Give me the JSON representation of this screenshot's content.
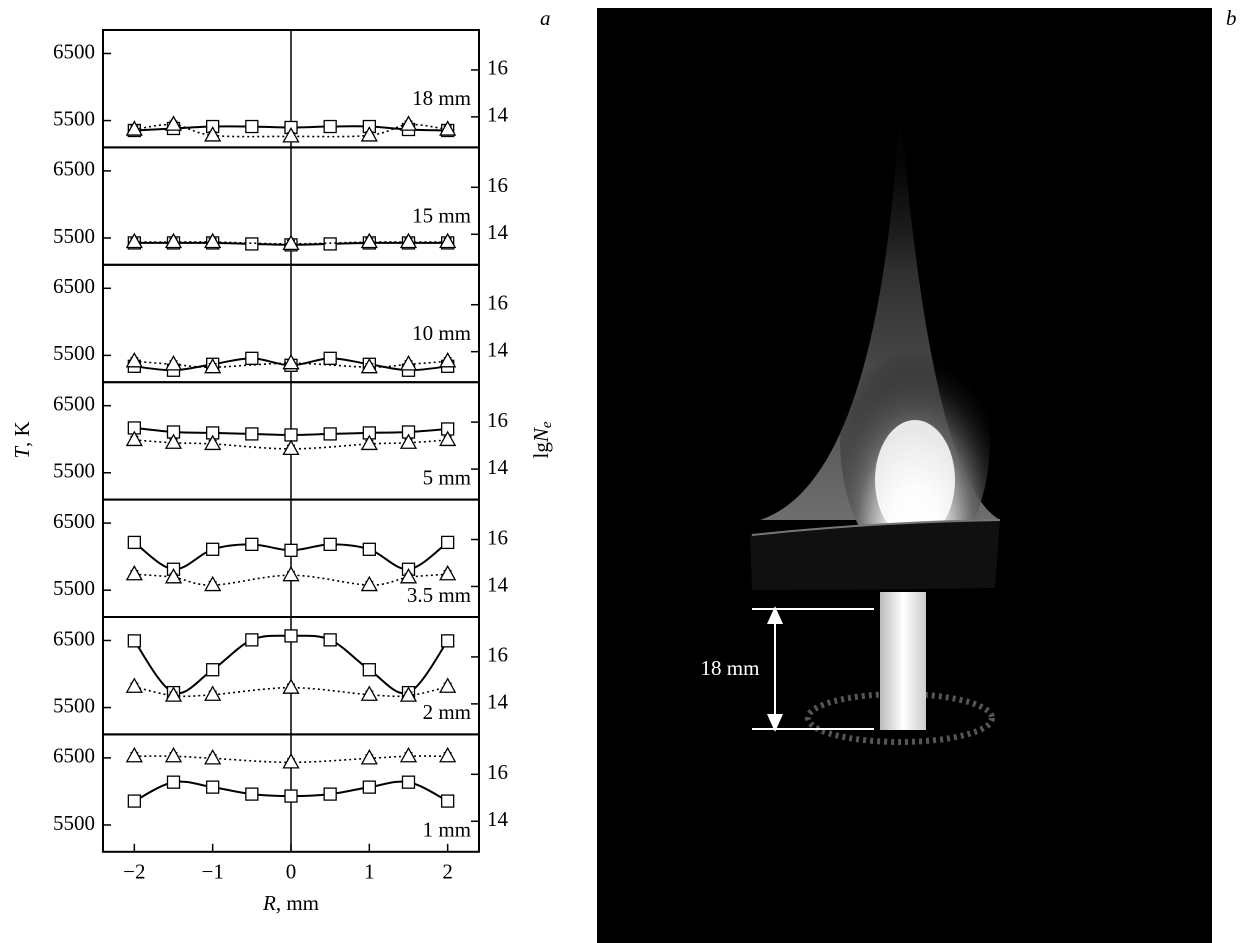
{
  "figure": {
    "label_a": "a",
    "label_b": "b",
    "y_label": {
      "var": "T",
      "unit": ", K"
    },
    "y2_label": {
      "prefix": "lg",
      "var": "N",
      "sub": "e"
    },
    "x_label": {
      "var": "R",
      "unit": ", mm"
    },
    "photo_annotation": "18 mm"
  },
  "chart_data": [
    {
      "type": "line",
      "label": "18 mm",
      "xlim": [
        -2.4,
        2.4
      ],
      "ylim": [
        5100,
        6850
      ],
      "y2lim": [
        12.7,
        17.7
      ],
      "yticks": [
        5500,
        6500
      ],
      "y2ticks": [
        14,
        16
      ],
      "series": [
        {
          "marker": "square",
          "style": "solid",
          "color": "#000000",
          "error": 80,
          "x": [
            -2,
            -1.5,
            -1,
            -0.5,
            0,
            0.5,
            1,
            1.5,
            2
          ],
          "values": [
            5352,
            5382,
            5411,
            5411,
            5397,
            5411,
            5411,
            5367,
            5352
          ]
        },
        {
          "marker": "triangle",
          "style": "dotted",
          "color": "#000000",
          "axis": "y2",
          "error": 0.15,
          "x": [
            -2,
            -1.5,
            -1,
            0,
            1,
            1.5,
            2
          ],
          "values": [
            13.46,
            13.67,
            13.21,
            13.17,
            13.21,
            13.67,
            13.46
          ]
        }
      ]
    },
    {
      "type": "line",
      "label": "15 mm",
      "xlim": [
        -2.4,
        2.4
      ],
      "ylim": [
        5100,
        6850
      ],
      "y2lim": [
        12.7,
        17.7
      ],
      "yticks": [
        5500,
        6500
      ],
      "y2ticks": [
        14,
        16
      ],
      "series": [
        {
          "marker": "square",
          "style": "solid",
          "color": "#000000",
          "error": 80,
          "x": [
            -2,
            -1.5,
            -1,
            -0.5,
            0,
            0.5,
            1,
            1.5,
            2
          ],
          "values": [
            5426,
            5426,
            5426,
            5411,
            5397,
            5411,
            5426,
            5426,
            5426
          ]
        },
        {
          "marker": "triangle",
          "style": "dotted",
          "color": "#000000",
          "axis": "y2",
          "error": 0.15,
          "x": [
            -2,
            -1.5,
            -1,
            0,
            1,
            1.5,
            2
          ],
          "values": [
            13.67,
            13.67,
            13.67,
            13.59,
            13.67,
            13.67,
            13.67
          ]
        }
      ]
    },
    {
      "type": "line",
      "label": "10 mm",
      "xlim": [
        -2.4,
        2.4
      ],
      "ylim": [
        5100,
        6850
      ],
      "y2lim": [
        12.7,
        17.7
      ],
      "yticks": [
        5500,
        6500
      ],
      "y2ticks": [
        14,
        16
      ],
      "series": [
        {
          "marker": "square",
          "style": "solid",
          "color": "#000000",
          "error": 80,
          "x": [
            -2,
            -1.5,
            -1,
            -0.5,
            0,
            0.5,
            1,
            1.5,
            2
          ],
          "values": [
            5337,
            5278,
            5367,
            5456,
            5352,
            5456,
            5367,
            5278,
            5337
          ]
        },
        {
          "marker": "triangle",
          "style": "dotted",
          "color": "#000000",
          "axis": "y2",
          "error": 0.15,
          "x": [
            -2,
            -1.5,
            -1,
            0,
            1,
            1.5,
            2
          ],
          "values": [
            13.59,
            13.46,
            13.34,
            13.51,
            13.34,
            13.46,
            13.59
          ]
        }
      ]
    },
    {
      "type": "line",
      "label": "5 mm",
      "xlim": [
        -2.4,
        2.4
      ],
      "ylim": [
        5100,
        6850
      ],
      "y2lim": [
        12.7,
        17.7
      ],
      "yticks": [
        5500,
        6500
      ],
      "y2ticks": [
        14,
        16
      ],
      "series": [
        {
          "marker": "square",
          "style": "solid",
          "color": "#000000",
          "error": 80,
          "x": [
            -2,
            -1.5,
            -1,
            -0.5,
            0,
            0.5,
            1,
            1.5,
            2
          ],
          "values": [
            6168,
            6108,
            6094,
            6079,
            6064,
            6079,
            6094,
            6108,
            6153
          ]
        },
        {
          "marker": "triangle",
          "style": "dotted",
          "color": "#000000",
          "axis": "y2",
          "error": 0.15,
          "x": [
            -2,
            -1.5,
            -1,
            0,
            1,
            1.5,
            2
          ],
          "values": [
            15.24,
            15.12,
            15.07,
            14.86,
            15.07,
            15.12,
            15.24
          ]
        }
      ]
    },
    {
      "type": "line",
      "label": "3.5 mm",
      "xlim": [
        -2.4,
        2.4
      ],
      "ylim": [
        5100,
        6850
      ],
      "y2lim": [
        12.7,
        17.7
      ],
      "yticks": [
        5500,
        6500
      ],
      "y2ticks": [
        14,
        16
      ],
      "series": [
        {
          "marker": "square",
          "style": "solid",
          "color": "#000000",
          "error": 80,
          "x": [
            -2,
            -1.5,
            -1,
            -0.5,
            0,
            0.5,
            1,
            1.5,
            2
          ],
          "values": [
            6212,
            5812,
            6109,
            6183,
            6094,
            6183,
            6109,
            5812,
            6212
          ]
        },
        {
          "marker": "triangle",
          "style": "dotted",
          "color": "#000000",
          "axis": "y2",
          "error": 0.15,
          "x": [
            -2,
            -1.5,
            -1,
            0,
            1,
            1.5,
            2
          ],
          "values": [
            14.52,
            14.39,
            14.06,
            14.48,
            14.06,
            14.39,
            14.52
          ]
        }
      ]
    },
    {
      "type": "line",
      "label": "2 mm",
      "xlim": [
        -2.4,
        2.4
      ],
      "ylim": [
        5100,
        6850
      ],
      "y2lim": [
        12.7,
        17.7
      ],
      "yticks": [
        5500,
        6500
      ],
      "y2ticks": [
        14,
        16
      ],
      "series": [
        {
          "marker": "square",
          "style": "solid",
          "color": "#000000",
          "error": 80,
          "x": [
            -2,
            -1.5,
            -1,
            -0.5,
            0,
            0.5,
            1,
            1.5,
            2
          ],
          "values": [
            6494,
            5723,
            6064,
            6509,
            6568,
            6509,
            6064,
            5723,
            6494
          ]
        },
        {
          "marker": "triangle",
          "style": "dotted",
          "color": "#000000",
          "axis": "y2",
          "error": 0.15,
          "x": [
            -2,
            -1.5,
            -1,
            0,
            1,
            1.5,
            2
          ],
          "values": [
            14.73,
            14.35,
            14.39,
            14.69,
            14.39,
            14.35,
            14.73
          ]
        }
      ]
    },
    {
      "type": "line",
      "label": "1 mm",
      "xlim": [
        -2.4,
        2.4
      ],
      "ylim": [
        5100,
        6850
      ],
      "y2lim": [
        12.7,
        17.7
      ],
      "yticks": [
        5500,
        6500
      ],
      "y2ticks": [
        14,
        16
      ],
      "xticks": [
        {
          "value": -2,
          "label": "−2"
        },
        {
          "value": -1,
          "label": "−1"
        },
        0,
        1,
        2
      ],
      "series": [
        {
          "marker": "square",
          "style": "solid",
          "color": "#000000",
          "error": 80,
          "x": [
            -2,
            -1.5,
            -1,
            -0.5,
            0,
            0.5,
            1,
            1.5,
            2
          ],
          "values": [
            5856,
            6138,
            6064,
            5960,
            5931,
            5960,
            6064,
            6138,
            5856
          ]
        },
        {
          "marker": "triangle",
          "style": "dotted",
          "color": "#000000",
          "axis": "y2",
          "error": 0.15,
          "x": [
            -2,
            -1.5,
            -1,
            0,
            1,
            1.5,
            2
          ],
          "values": [
            16.77,
            16.77,
            16.68,
            16.51,
            16.68,
            16.77,
            16.77
          ]
        }
      ]
    }
  ]
}
